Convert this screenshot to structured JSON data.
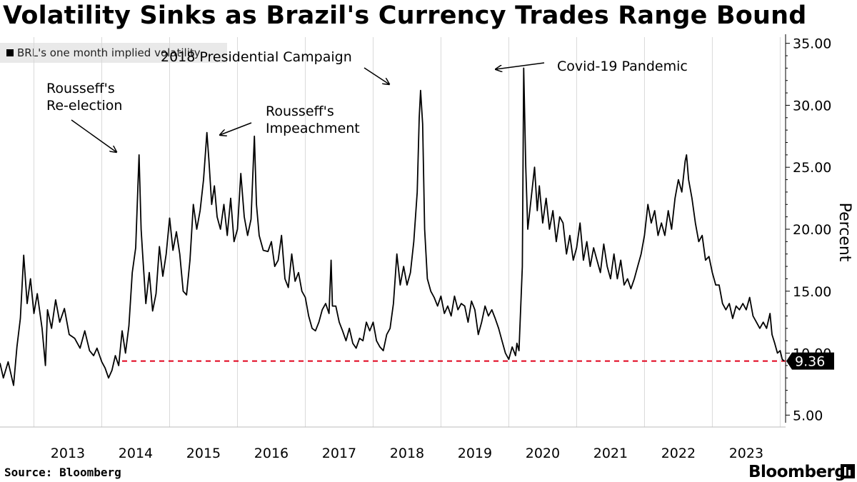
{
  "title": "Volatility Sinks as Brazil's Currency Trades Range Bound",
  "legend": {
    "label": "BRL's one month implied volatility"
  },
  "footer": {
    "source": "Source: Bloomberg",
    "brand": "Bloomberg"
  },
  "chart_data": {
    "type": "line",
    "title": "Volatility Sinks as Brazil's Currency Trades Range Bound",
    "ylabel": "Percent",
    "xlabel": "",
    "xlim": [
      2012.5,
      2024.08
    ],
    "ylim": [
      4.5,
      35.5
    ],
    "y_ticks": [
      5,
      10,
      15,
      20,
      25,
      30,
      35
    ],
    "y_tick_labels": [
      "5.00",
      "10.00",
      "15.00",
      "20.00",
      "25.00",
      "30.00",
      "35.00"
    ],
    "x_year_labels": [
      "2013",
      "2014",
      "2015",
      "2016",
      "2017",
      "2018",
      "2019",
      "2020",
      "2021",
      "2022",
      "2023"
    ],
    "series": [
      {
        "name": "BRL's one month implied volatility",
        "color": "#000000",
        "points": [
          [
            2012.5,
            9.2
          ],
          [
            2012.55,
            8.0
          ],
          [
            2012.62,
            9.3
          ],
          [
            2012.7,
            7.4
          ],
          [
            2012.75,
            10.5
          ],
          [
            2012.8,
            12.8
          ],
          [
            2012.85,
            17.9
          ],
          [
            2012.9,
            14.0
          ],
          [
            2012.95,
            16.0
          ],
          [
            2013.0,
            13.2
          ],
          [
            2013.05,
            14.8
          ],
          [
            2013.12,
            12.0
          ],
          [
            2013.17,
            9.0
          ],
          [
            2013.2,
            13.5
          ],
          [
            2013.26,
            12.0
          ],
          [
            2013.32,
            14.3
          ],
          [
            2013.38,
            12.5
          ],
          [
            2013.45,
            13.6
          ],
          [
            2013.52,
            11.5
          ],
          [
            2013.6,
            11.2
          ],
          [
            2013.68,
            10.4
          ],
          [
            2013.75,
            11.8
          ],
          [
            2013.82,
            10.2
          ],
          [
            2013.88,
            9.8
          ],
          [
            2013.93,
            10.4
          ],
          [
            2014.0,
            9.3
          ],
          [
            2014.05,
            8.8
          ],
          [
            2014.1,
            8.0
          ],
          [
            2014.15,
            8.6
          ],
          [
            2014.2,
            9.8
          ],
          [
            2014.25,
            9.0
          ],
          [
            2014.3,
            11.8
          ],
          [
            2014.35,
            10.0
          ],
          [
            2014.4,
            12.2
          ],
          [
            2014.45,
            16.5
          ],
          [
            2014.5,
            18.5
          ],
          [
            2014.55,
            26.0
          ],
          [
            2014.58,
            20.0
          ],
          [
            2014.6,
            18.2
          ],
          [
            2014.65,
            14.0
          ],
          [
            2014.7,
            16.5
          ],
          [
            2014.75,
            13.4
          ],
          [
            2014.8,
            14.8
          ],
          [
            2014.85,
            18.6
          ],
          [
            2014.9,
            16.2
          ],
          [
            2014.95,
            18.0
          ],
          [
            2015.0,
            20.9
          ],
          [
            2015.05,
            18.3
          ],
          [
            2015.1,
            19.8
          ],
          [
            2015.15,
            18.0
          ],
          [
            2015.2,
            15.0
          ],
          [
            2015.25,
            14.7
          ],
          [
            2015.3,
            17.5
          ],
          [
            2015.35,
            22.0
          ],
          [
            2015.4,
            20.0
          ],
          [
            2015.45,
            21.5
          ],
          [
            2015.5,
            24.0
          ],
          [
            2015.55,
            27.8
          ],
          [
            2015.58,
            25.5
          ],
          [
            2015.62,
            22.0
          ],
          [
            2015.66,
            23.5
          ],
          [
            2015.7,
            21.0
          ],
          [
            2015.75,
            20.0
          ],
          [
            2015.8,
            22.0
          ],
          [
            2015.85,
            19.5
          ],
          [
            2015.9,
            22.5
          ],
          [
            2015.95,
            19.0
          ],
          [
            2016.0,
            20.0
          ],
          [
            2016.05,
            24.5
          ],
          [
            2016.1,
            21.0
          ],
          [
            2016.15,
            19.5
          ],
          [
            2016.2,
            20.8
          ],
          [
            2016.25,
            27.5
          ],
          [
            2016.28,
            22.0
          ],
          [
            2016.32,
            19.5
          ],
          [
            2016.38,
            18.3
          ],
          [
            2016.45,
            18.2
          ],
          [
            2016.5,
            19.0
          ],
          [
            2016.55,
            17.0
          ],
          [
            2016.6,
            17.5
          ],
          [
            2016.65,
            19.5
          ],
          [
            2016.7,
            16.0
          ],
          [
            2016.75,
            15.3
          ],
          [
            2016.8,
            18.0
          ],
          [
            2016.85,
            15.8
          ],
          [
            2016.9,
            16.5
          ],
          [
            2016.95,
            15.0
          ],
          [
            2017.0,
            14.5
          ],
          [
            2017.05,
            13.0
          ],
          [
            2017.1,
            12.0
          ],
          [
            2017.15,
            11.8
          ],
          [
            2017.2,
            12.5
          ],
          [
            2017.25,
            13.5
          ],
          [
            2017.3,
            14.0
          ],
          [
            2017.35,
            13.2
          ],
          [
            2017.38,
            17.5
          ],
          [
            2017.4,
            13.8
          ],
          [
            2017.45,
            13.8
          ],
          [
            2017.5,
            12.5
          ],
          [
            2017.55,
            11.8
          ],
          [
            2017.6,
            11.0
          ],
          [
            2017.65,
            12.0
          ],
          [
            2017.7,
            10.8
          ],
          [
            2017.75,
            10.4
          ],
          [
            2017.8,
            11.2
          ],
          [
            2017.85,
            11.0
          ],
          [
            2017.9,
            12.5
          ],
          [
            2017.95,
            11.8
          ],
          [
            2018.0,
            12.5
          ],
          [
            2018.05,
            11.0
          ],
          [
            2018.1,
            10.5
          ],
          [
            2018.15,
            10.2
          ],
          [
            2018.2,
            11.5
          ],
          [
            2018.25,
            12.0
          ],
          [
            2018.3,
            14.0
          ],
          [
            2018.35,
            18.0
          ],
          [
            2018.4,
            15.5
          ],
          [
            2018.45,
            17.0
          ],
          [
            2018.5,
            15.5
          ],
          [
            2018.55,
            16.5
          ],
          [
            2018.6,
            19.0
          ],
          [
            2018.65,
            23.0
          ],
          [
            2018.68,
            29.0
          ],
          [
            2018.7,
            31.2
          ],
          [
            2018.73,
            28.5
          ],
          [
            2018.76,
            20.0
          ],
          [
            2018.8,
            16.0
          ],
          [
            2018.85,
            15.0
          ],
          [
            2018.9,
            14.5
          ],
          [
            2018.95,
            13.8
          ],
          [
            2019.0,
            14.6
          ],
          [
            2019.05,
            13.2
          ],
          [
            2019.1,
            13.8
          ],
          [
            2019.15,
            13.0
          ],
          [
            2019.2,
            14.6
          ],
          [
            2019.25,
            13.5
          ],
          [
            2019.3,
            14.0
          ],
          [
            2019.35,
            13.8
          ],
          [
            2019.4,
            12.5
          ],
          [
            2019.45,
            14.2
          ],
          [
            2019.5,
            13.5
          ],
          [
            2019.55,
            11.5
          ],
          [
            2019.6,
            12.5
          ],
          [
            2019.65,
            13.8
          ],
          [
            2019.7,
            13.0
          ],
          [
            2019.75,
            13.5
          ],
          [
            2019.8,
            12.8
          ],
          [
            2019.85,
            12.0
          ],
          [
            2019.9,
            11.0
          ],
          [
            2019.95,
            10.0
          ],
          [
            2020.0,
            9.5
          ],
          [
            2020.05,
            10.5
          ],
          [
            2020.1,
            9.8
          ],
          [
            2020.12,
            10.8
          ],
          [
            2020.15,
            10.2
          ],
          [
            2020.2,
            17.0
          ],
          [
            2020.22,
            33.0
          ],
          [
            2020.25,
            25.0
          ],
          [
            2020.28,
            20.0
          ],
          [
            2020.32,
            22.0
          ],
          [
            2020.38,
            25.0
          ],
          [
            2020.42,
            21.5
          ],
          [
            2020.45,
            23.5
          ],
          [
            2020.5,
            20.5
          ],
          [
            2020.55,
            22.5
          ],
          [
            2020.6,
            20.0
          ],
          [
            2020.65,
            21.5
          ],
          [
            2020.7,
            19.0
          ],
          [
            2020.75,
            21.0
          ],
          [
            2020.8,
            20.5
          ],
          [
            2020.85,
            18.0
          ],
          [
            2020.9,
            19.5
          ],
          [
            2020.95,
            17.5
          ],
          [
            2021.0,
            18.5
          ],
          [
            2021.05,
            20.5
          ],
          [
            2021.1,
            17.5
          ],
          [
            2021.15,
            19.0
          ],
          [
            2021.2,
            17.0
          ],
          [
            2021.25,
            18.5
          ],
          [
            2021.3,
            17.5
          ],
          [
            2021.35,
            16.5
          ],
          [
            2021.4,
            18.8
          ],
          [
            2021.45,
            17.0
          ],
          [
            2021.5,
            16.0
          ],
          [
            2021.55,
            18.0
          ],
          [
            2021.6,
            16.0
          ],
          [
            2021.65,
            17.5
          ],
          [
            2021.7,
            15.5
          ],
          [
            2021.75,
            16.0
          ],
          [
            2021.8,
            15.2
          ],
          [
            2021.85,
            16.0
          ],
          [
            2021.9,
            17.0
          ],
          [
            2021.95,
            18.0
          ],
          [
            2022.0,
            19.5
          ],
          [
            2022.05,
            22.0
          ],
          [
            2022.1,
            20.5
          ],
          [
            2022.15,
            21.5
          ],
          [
            2022.2,
            19.5
          ],
          [
            2022.25,
            20.5
          ],
          [
            2022.3,
            19.5
          ],
          [
            2022.35,
            21.5
          ],
          [
            2022.4,
            20.0
          ],
          [
            2022.45,
            22.5
          ],
          [
            2022.5,
            24.0
          ],
          [
            2022.55,
            23.0
          ],
          [
            2022.6,
            25.5
          ],
          [
            2022.62,
            26.0
          ],
          [
            2022.65,
            24.0
          ],
          [
            2022.7,
            22.5
          ],
          [
            2022.75,
            20.5
          ],
          [
            2022.8,
            19.0
          ],
          [
            2022.85,
            19.5
          ],
          [
            2022.9,
            17.5
          ],
          [
            2022.95,
            17.8
          ],
          [
            2023.0,
            16.5
          ],
          [
            2023.05,
            15.5
          ],
          [
            2023.1,
            15.5
          ],
          [
            2023.15,
            14.0
          ],
          [
            2023.2,
            13.5
          ],
          [
            2023.25,
            14.0
          ],
          [
            2023.3,
            12.8
          ],
          [
            2023.35,
            13.8
          ],
          [
            2023.4,
            13.5
          ],
          [
            2023.45,
            14.0
          ],
          [
            2023.5,
            13.5
          ],
          [
            2023.55,
            14.5
          ],
          [
            2023.6,
            13.0
          ],
          [
            2023.65,
            12.5
          ],
          [
            2023.7,
            12.0
          ],
          [
            2023.75,
            12.5
          ],
          [
            2023.8,
            12.0
          ],
          [
            2023.85,
            13.2
          ],
          [
            2023.88,
            11.5
          ],
          [
            2023.92,
            10.8
          ],
          [
            2023.96,
            10.0
          ],
          [
            2024.0,
            10.2
          ],
          [
            2024.03,
            9.5
          ],
          [
            2024.06,
            9.36
          ]
        ]
      }
    ],
    "reference_line": {
      "value": 9.36,
      "style": "dashed",
      "color": "#e0001b",
      "from_x": 2014.3,
      "to_x": 2024.08
    },
    "last_value_label": "9.36",
    "annotations": [
      {
        "text": [
          "Rousseff's",
          "Re-election"
        ],
        "x": 2014.55,
        "y": 26.2
      },
      {
        "text": [
          "Rousseff's",
          "Impeachment"
        ],
        "x": 2016.26,
        "y": 27.8
      },
      {
        "text": [
          "2018 Presidential Campaign"
        ],
        "x": 2018.7,
        "y": 31.7
      },
      {
        "text": [
          "Covid-19 Pandemic"
        ],
        "x": 2020.22,
        "y": 33.2
      }
    ]
  }
}
